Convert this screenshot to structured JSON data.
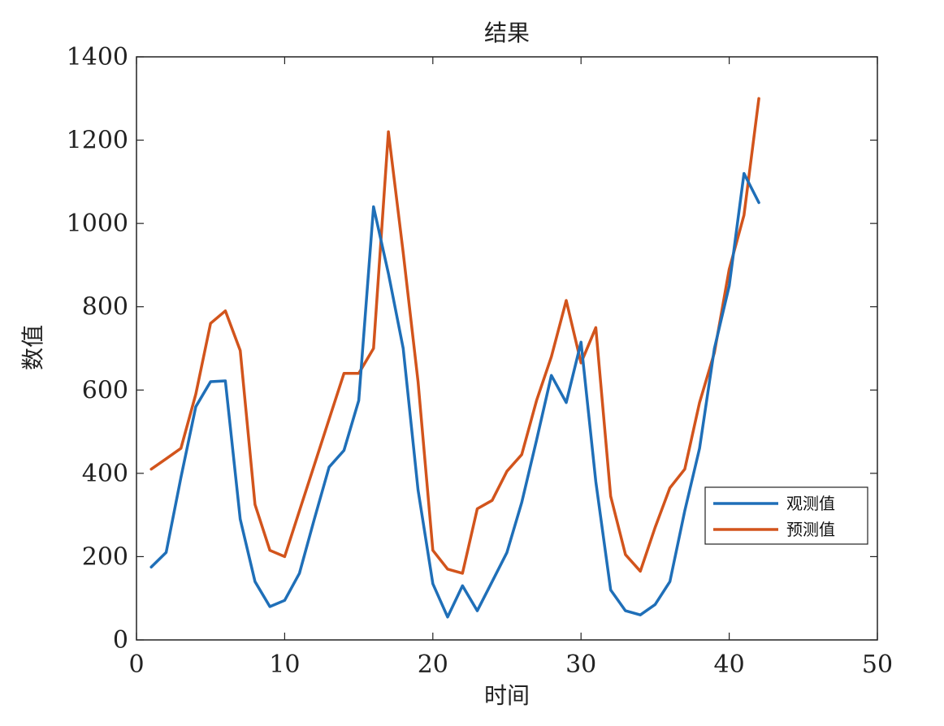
{
  "chart_data": {
    "type": "line",
    "title": "结果",
    "xlabel": "时间",
    "ylabel": "数值",
    "xlim": [
      0,
      50
    ],
    "ylim": [
      0,
      1400
    ],
    "xticks": [
      0,
      10,
      20,
      30,
      40,
      50
    ],
    "yticks": [
      0,
      200,
      400,
      600,
      800,
      1000,
      1200,
      1400
    ],
    "grid": false,
    "legend_position": "lower-right",
    "x": [
      1,
      2,
      3,
      4,
      5,
      6,
      7,
      8,
      9,
      10,
      11,
      12,
      13,
      14,
      15,
      16,
      17,
      18,
      19,
      20,
      21,
      22,
      23,
      24,
      25,
      26,
      27,
      28,
      29,
      30,
      31,
      32,
      33,
      34,
      35,
      36,
      37,
      38,
      39,
      40,
      41,
      42
    ],
    "series": [
      {
        "name": "观测值",
        "color": "#1f6fb8",
        "values": [
          175,
          210,
          390,
          560,
          620,
          622,
          290,
          140,
          80,
          95,
          160,
          290,
          415,
          455,
          575,
          1040,
          880,
          700,
          360,
          135,
          55,
          130,
          70,
          140,
          210,
          330,
          480,
          635,
          570,
          715,
          380,
          120,
          70,
          60,
          85,
          140,
          310,
          460,
          700,
          850,
          1120,
          1050
        ]
      },
      {
        "name": "预测值",
        "color": "#d2541c",
        "values": [
          410,
          435,
          460,
          590,
          760,
          790,
          695,
          325,
          215,
          200,
          310,
          420,
          530,
          640,
          640,
          700,
          1220,
          930,
          620,
          215,
          170,
          160,
          315,
          335,
          405,
          445,
          575,
          680,
          815,
          665,
          750,
          345,
          205,
          165,
          270,
          365,
          410,
          570,
          690,
          890,
          1020,
          1300
        ]
      }
    ]
  }
}
